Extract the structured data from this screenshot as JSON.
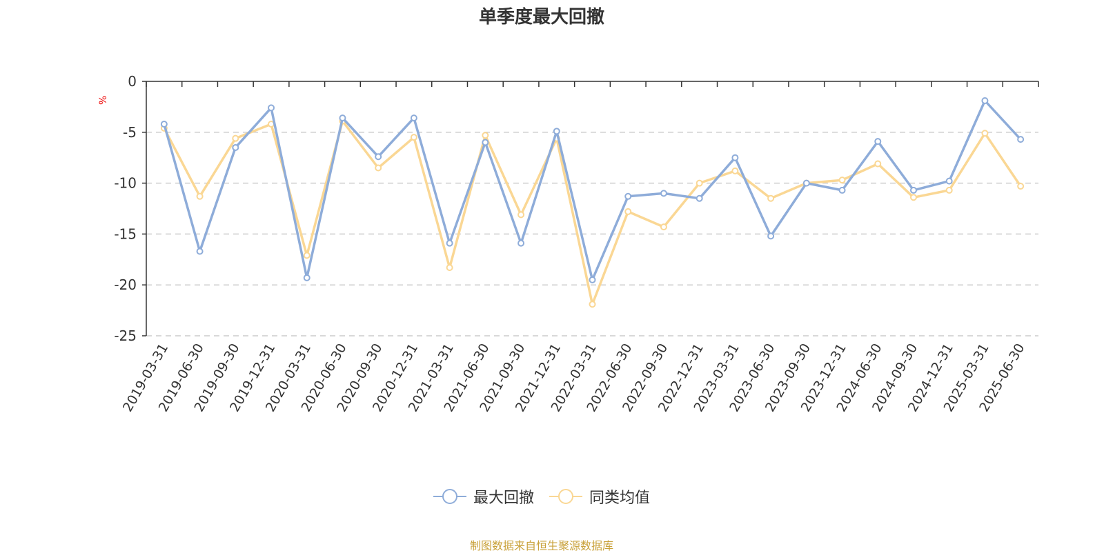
{
  "chart_data": {
    "type": "line",
    "title": "单季度最大回撤",
    "ylabel": "%",
    "xlabel": "",
    "ylim": [
      -25,
      0
    ],
    "yticks": [
      0,
      -5,
      -10,
      -15,
      -20,
      -25
    ],
    "grid": true,
    "legend_position": "bottom",
    "categories": [
      "2019-03-31",
      "2019-06-30",
      "2019-09-30",
      "2019-12-31",
      "2020-03-31",
      "2020-06-30",
      "2020-09-30",
      "2020-12-31",
      "2021-03-31",
      "2021-06-30",
      "2021-09-30",
      "2021-12-31",
      "2022-03-31",
      "2022-06-30",
      "2022-09-30",
      "2022-12-31",
      "2023-03-31",
      "2023-06-30",
      "2023-09-30",
      "2023-12-31",
      "2024-06-30",
      "2024-09-30",
      "2024-12-31",
      "2025-03-31",
      "2025-06-30"
    ],
    "series": [
      {
        "name": "最大回撤",
        "color": "#8eacd9",
        "values": [
          -4.2,
          -16.7,
          -6.5,
          -2.6,
          -19.3,
          -3.6,
          -7.4,
          -3.6,
          -15.9,
          -6.0,
          -15.9,
          -4.9,
          -19.5,
          -11.3,
          -11.0,
          -11.5,
          -7.5,
          -15.2,
          -10.0,
          -10.7,
          -5.9,
          -10.7,
          -9.8,
          -1.9,
          -5.7
        ]
      },
      {
        "name": "同类均值",
        "color": "#fad794",
        "values": [
          -4.6,
          -11.3,
          -5.6,
          -4.2,
          -17.1,
          -3.9,
          -8.5,
          -5.5,
          -18.3,
          -5.3,
          -13.1,
          -5.6,
          -21.9,
          -12.8,
          -14.3,
          -10.0,
          -8.8,
          -11.5,
          -10.0,
          -9.7,
          -8.1,
          -11.4,
          -10.7,
          -5.1,
          -10.3
        ]
      }
    ]
  },
  "source_text": "制图数据来自恒生聚源数据库",
  "source_color": "#c9a13a"
}
